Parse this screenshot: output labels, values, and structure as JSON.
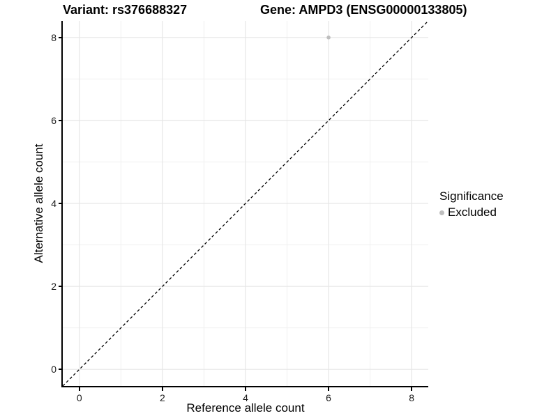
{
  "chart_data": {
    "type": "scatter",
    "titles": {
      "variant": "Variant: rs376688327",
      "gene": "Gene: AMPD3 (ENSG00000133805)"
    },
    "xlabel": "Reference allele count",
    "ylabel": "Alternative allele count",
    "xlim": [
      -0.4,
      8.4
    ],
    "ylim": [
      -0.4,
      8.4
    ],
    "x_ticks": [
      0,
      2,
      4,
      6,
      8
    ],
    "y_ticks": [
      0,
      2,
      4,
      6,
      8
    ],
    "x_minor_ticks": [
      1,
      3,
      5,
      7
    ],
    "y_minor_ticks": [
      1,
      3,
      5,
      7
    ],
    "points": [
      {
        "x": 6,
        "y": 8,
        "significance": "Excluded",
        "color": "#bebebe"
      }
    ],
    "reference_line": {
      "type": "identity",
      "style": "dashed",
      "from": [
        -0.4,
        -0.4
      ],
      "to": [
        8.4,
        8.4
      ],
      "color": "#000000"
    },
    "grid": {
      "on": true,
      "major_color": "#e6e6e6",
      "minor_color": "#f0f0f0"
    },
    "axis_color": "#000000",
    "legend": {
      "title": "Significance",
      "position": "right",
      "items": [
        {
          "label": "Excluded",
          "color": "#bebebe"
        }
      ]
    }
  }
}
